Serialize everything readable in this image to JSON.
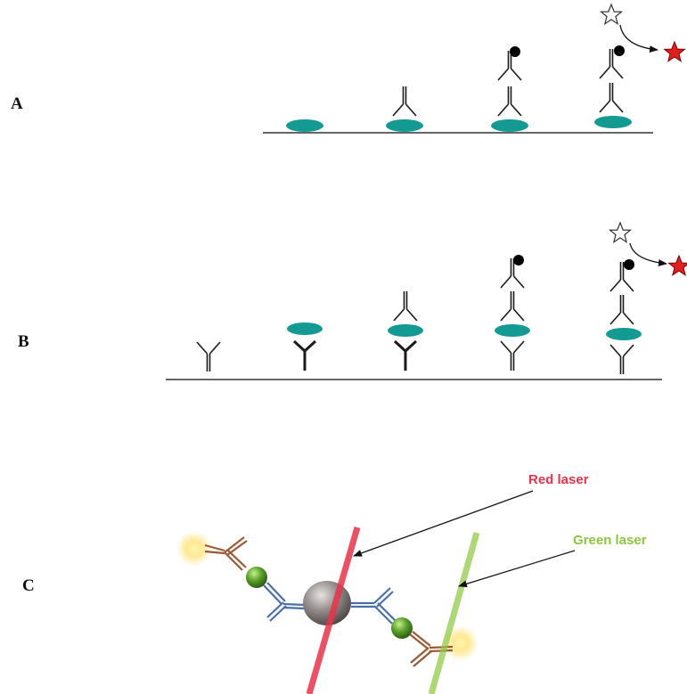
{
  "panels": [
    {
      "id": "A",
      "label": "A"
    },
    {
      "id": "B",
      "label": "B"
    },
    {
      "id": "C",
      "label": "C"
    }
  ],
  "lasers": {
    "red": {
      "label": "Red laser",
      "color": "#e8334a"
    },
    "green": {
      "label": "Green laser",
      "color": "#8cc63f"
    }
  },
  "colors": {
    "antigen": "#139a93",
    "antibody": "#1a1a1a",
    "fluorophore_unexcited": "#ffffff",
    "fluorophore_excited": "#e02020",
    "label_dot": "#000000",
    "bead": "#8a8380",
    "green_bead": "#5aa02c",
    "antibody_blue": "#4a6fa8",
    "antibody_brown": "#9a5a36",
    "glow": "#ffe37a"
  },
  "icons": {
    "fluorophore": "star-icon",
    "label": "dot-icon",
    "antibody": "y-shaped-antibody-icon",
    "antigen": "ellipse-antigen-icon"
  }
}
